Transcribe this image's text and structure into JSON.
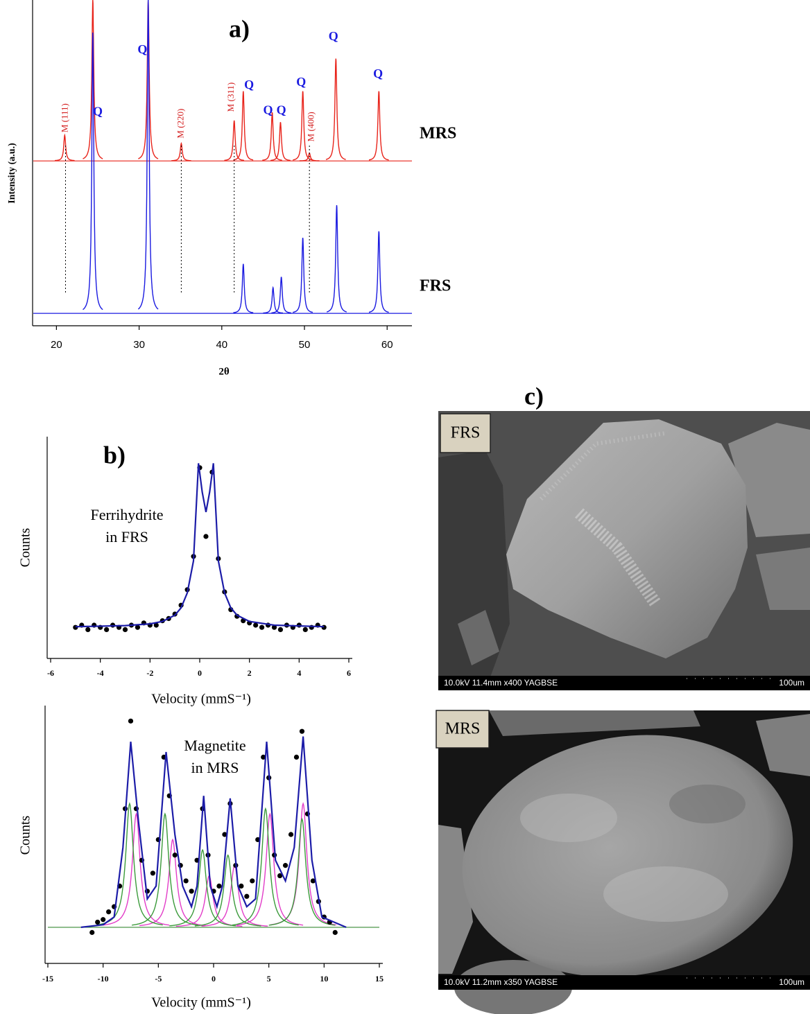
{
  "chart_data": [
    {
      "type": "peaks",
      "title": "a)",
      "xlabel": "2θ",
      "ylabel": "Intensity (a.u.)",
      "xlim": [
        17.2,
        63
      ],
      "ylim": [
        0,
        100
      ],
      "xticks": [
        20,
        30,
        40,
        50,
        60
      ],
      "series": [
        {
          "name": "MRS",
          "color": "#e8231a",
          "baseline": 50.6,
          "x": [
            21.0,
            24.4,
            31.1,
            35.1,
            41.5,
            42.6,
            46.1,
            47.1,
            49.8,
            50.6,
            53.8,
            59.0
          ],
          "values": [
            58.5,
            100,
            100,
            56,
            63,
            72,
            65.5,
            62.5,
            72,
            53,
            82,
            72
          ]
        },
        {
          "name": "FRS",
          "color": "#1a1ae0",
          "baseline": 3.8,
          "x": [
            24.4,
            31.1,
            42.6,
            46.2,
            47.2,
            49.8,
            53.9,
            59.0
          ],
          "values": [
            90,
            100,
            19,
            11.7,
            15,
            27,
            37,
            29
          ]
        }
      ],
      "annotations": [
        {
          "text": "Q",
          "x": 25.0,
          "y": 65.5,
          "color": "#1a1ae0"
        },
        {
          "text": "Q",
          "x": 30.4,
          "y": 84.5,
          "color": "#1a1ae0"
        },
        {
          "text": "Q",
          "x": 43.3,
          "y": 73.6,
          "color": "#1a1ae0"
        },
        {
          "text": "Q",
          "x": 45.6,
          "y": 65.9,
          "color": "#1a1ae0"
        },
        {
          "text": "Q",
          "x": 47.2,
          "y": 65.9,
          "color": "#1a1ae0"
        },
        {
          "text": "Q",
          "x": 49.6,
          "y": 74.5,
          "color": "#1a1ae0"
        },
        {
          "text": "Q",
          "x": 53.5,
          "y": 88.5,
          "color": "#1a1ae0"
        },
        {
          "text": "Q",
          "x": 58.9,
          "y": 77.0,
          "color": "#1a1ae0"
        },
        {
          "text": "M (111)",
          "x": 21.1,
          "y": 63.8,
          "color": "#d42020",
          "orientation": "vertical"
        },
        {
          "text": "M (220)",
          "x": 35.1,
          "y": 62.1,
          "color": "#d42020",
          "orientation": "vertical"
        },
        {
          "text": "M (311)",
          "x": 41.2,
          "y": 70.2,
          "color": "#d42020",
          "orientation": "vertical"
        },
        {
          "text": "M (400)",
          "x": 50.9,
          "y": 61.1,
          "color": "#d42020",
          "orientation": "vertical"
        }
      ],
      "reference_lines": [
        21.1,
        35.1,
        41.5,
        50.6
      ]
    },
    {
      "type": "scatter",
      "title": "b)",
      "xlabel": "Velocity (mmS⁻¹)",
      "ylabel": "Counts",
      "note_lines": [
        "Ferrihydrite",
        "in FRS"
      ],
      "xlim": [
        -6,
        6
      ],
      "ylim": [
        0,
        100
      ],
      "xticks": [
        -6,
        -4,
        -2,
        0,
        2,
        4,
        6
      ],
      "series": [
        {
          "color": "#000000",
          "style": "points",
          "x": [
            -5,
            -4.75,
            -4.5,
            -4.25,
            -4,
            -3.75,
            -3.5,
            -3.25,
            -3,
            -2.75,
            -2.5,
            -2.25,
            -2,
            -1.75,
            -1.5,
            -1.25,
            -1,
            -0.75,
            -0.5,
            -0.25,
            0,
            0.25,
            0.5,
            0.75,
            1,
            1.25,
            1.5,
            1.75,
            2,
            2.25,
            2.5,
            2.75,
            3,
            3.25,
            3.5,
            3.75,
            4,
            4.25,
            4.5,
            4.75,
            5
          ],
          "values": [
            14,
            15,
            13,
            15,
            14,
            13,
            15,
            14,
            13,
            15,
            14,
            16,
            15,
            15,
            17,
            18,
            20,
            24,
            31,
            46,
            86,
            55,
            84,
            45,
            30,
            22,
            19,
            17,
            16,
            15,
            14,
            15,
            14,
            13,
            15,
            14,
            15,
            13,
            14,
            15,
            14
          ]
        },
        {
          "color": "#1c1ca8",
          "style": "line",
          "x": [
            -5,
            -3,
            -2,
            -1.5,
            -1,
            -0.75,
            -0.5,
            -0.25,
            -0.05,
            0.1,
            0.25,
            0.4,
            0.55,
            0.75,
            1,
            1.25,
            1.5,
            2,
            3,
            5
          ],
          "values": [
            14.3,
            14.8,
            15.6,
            16.7,
            19.5,
            22.8,
            29.6,
            44,
            88,
            75,
            66,
            75,
            88,
            44,
            29.6,
            22.8,
            19.5,
            16.7,
            15,
            14.3
          ]
        }
      ]
    },
    {
      "type": "scatter",
      "xlabel": "Velocity (mmS⁻¹)",
      "ylabel": "Counts",
      "note_lines": [
        "Magnetite",
        "in MRS"
      ],
      "xlim": [
        -15,
        15
      ],
      "ylim": [
        0,
        100
      ],
      "xticks": [
        -15,
        -10,
        -5,
        0,
        5,
        10,
        15
      ],
      "series": [
        {
          "color": "#e23cc8",
          "style": "peaks",
          "baseline": 14,
          "x": [
            -7.0,
            -3.7,
            -0.4,
            1.9,
            5.1,
            8.1
          ],
          "values": [
            58,
            48,
            34,
            38,
            58,
            62
          ]
        },
        {
          "color": "#3a9a3a",
          "style": "peaks",
          "baseline": 14,
          "x": [
            -7.6,
            -4.4,
            -1.0,
            1.3,
            4.7,
            8.0
          ],
          "values": [
            62,
            58,
            44,
            42,
            60,
            56
          ]
        },
        {
          "color": "#000000",
          "style": "points",
          "x": [
            -11,
            -10.5,
            -10,
            -9.5,
            -9,
            -8.5,
            -8,
            -7.5,
            -7,
            -6.5,
            -6,
            -5.5,
            -5,
            -4.5,
            -4,
            -3.5,
            -3,
            -2.5,
            -2,
            -1.5,
            -1,
            -0.5,
            0,
            0.5,
            1,
            1.5,
            2,
            2.5,
            3,
            3.5,
            4,
            4.5,
            5,
            5.5,
            6,
            6.5,
            7,
            7.5,
            8,
            8.5,
            9,
            9.5,
            10,
            10.5,
            11
          ],
          "values": [
            12,
            16,
            17,
            20,
            22,
            30,
            60,
            94,
            60,
            40,
            28,
            35,
            48,
            80,
            65,
            42,
            38,
            32,
            28,
            40,
            60,
            42,
            28,
            30,
            50,
            62,
            38,
            30,
            26,
            32,
            48,
            80,
            72,
            42,
            34,
            38,
            50,
            80,
            90,
            58,
            32,
            24,
            18,
            16,
            12
          ]
        },
        {
          "color": "#1c1ca8",
          "style": "line",
          "x": [
            -12,
            -10,
            -9,
            -8.2,
            -7.5,
            -6.8,
            -6,
            -5.2,
            -4.3,
            -3.5,
            -2.8,
            -2,
            -1.5,
            -0.9,
            -0.3,
            0.3,
            0.8,
            1.5,
            2.2,
            3,
            3.8,
            4.8,
            5.6,
            6.5,
            7.3,
            8.1,
            8.9,
            9.8,
            12
          ],
          "values": [
            14,
            15,
            18,
            45,
            86,
            55,
            25,
            30,
            82,
            50,
            30,
            22,
            30,
            65,
            30,
            22,
            30,
            64,
            30,
            22,
            25,
            86,
            40,
            32,
            45,
            88,
            40,
            18,
            14
          ]
        }
      ]
    }
  ],
  "panel_c": {
    "title": "c)",
    "images": [
      {
        "label": "FRS",
        "caption": "10.0kV 11.4mm x400 YAGBSE",
        "scale": "100um"
      },
      {
        "label": "MRS",
        "caption": "10.0kV 11.2mm x350 YAGBSE",
        "scale": "100um"
      }
    ]
  }
}
